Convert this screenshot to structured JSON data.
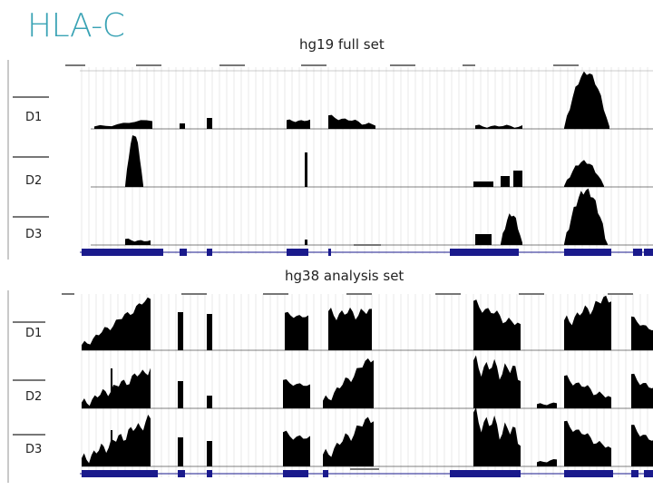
{
  "title": "HLA-C",
  "panel1": {
    "caption": "hg19 full set",
    "track_labels": [
      "D1",
      "D2",
      "D3"
    ]
  },
  "panel2": {
    "caption": "hg38 analysis set",
    "track_labels": [
      "D1",
      "D2",
      "D3"
    ]
  },
  "colors": {
    "title": "#3aa3b5",
    "signal": "#000000",
    "gene": "#1a1a8c",
    "grid": "#dcdcdc"
  }
}
